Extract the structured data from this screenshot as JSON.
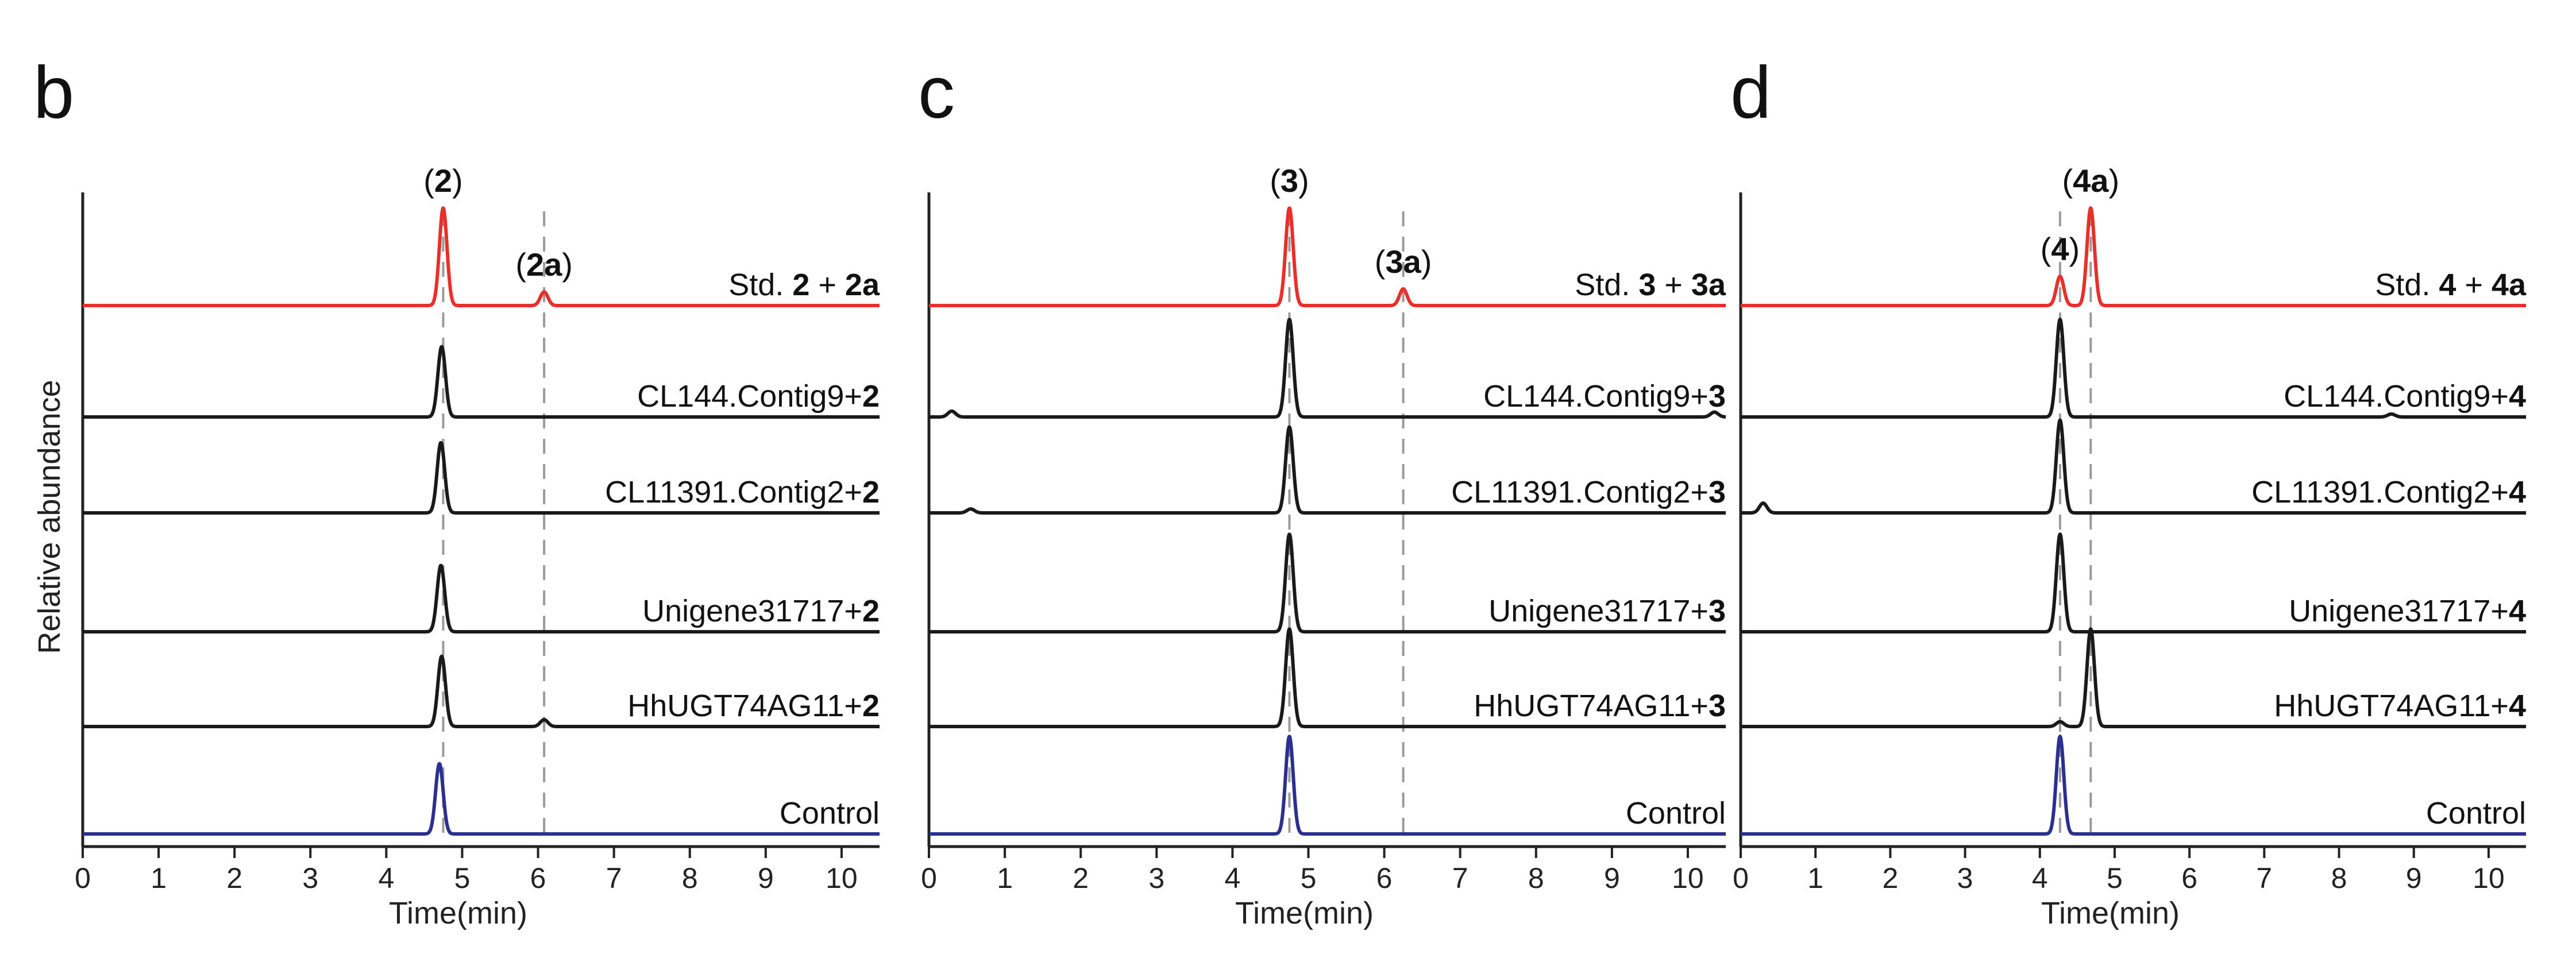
{
  "figure": {
    "y_axis_label": "Relative abundance",
    "colors": {
      "standard": "#e8302a",
      "sample": "#1a1a1a",
      "control": "#2b2f8f",
      "guide": "#9a9a9a",
      "axis": "#222222"
    }
  },
  "chart_data": [
    {
      "type": "line",
      "panel_letter": "b",
      "title": "",
      "xlabel": "Time(min)",
      "ylabel": "Relative abundance",
      "xlim": [
        0,
        10.5
      ],
      "xticks": [
        "0",
        "1",
        "2",
        "3",
        "4",
        "5",
        "6",
        "7",
        "8",
        "9",
        "10"
      ],
      "peak_labels": [
        {
          "pre": "(",
          "bold": "2",
          "post": ")",
          "time": 4.75
        },
        {
          "pre": "(",
          "bold": "2a",
          "post": ")",
          "time": 6.08
        }
      ],
      "guides": [
        4.75,
        6.08
      ],
      "series": [
        {
          "name_pre": "Std. ",
          "name_bold1": "2",
          "name_mid": " + ",
          "name_bold2": "2a",
          "color": "standard",
          "peaks": [
            {
              "time": 4.75,
              "height": 1.0
            },
            {
              "time": 6.08,
              "height": 0.14
            }
          ]
        },
        {
          "name_pre": "CL144.Contig9+",
          "name_bold1": "2",
          "name_mid": "",
          "name_bold2": "",
          "color": "sample",
          "peaks": [
            {
              "time": 4.73,
              "height": 0.72
            }
          ]
        },
        {
          "name_pre": "CL11391.Contig2+",
          "name_bold1": "2",
          "name_mid": "",
          "name_bold2": "",
          "color": "sample",
          "peaks": [
            {
              "time": 4.72,
              "height": 0.72
            }
          ]
        },
        {
          "name_pre": "Unigene31717+",
          "name_bold1": "2",
          "name_mid": "",
          "name_bold2": "",
          "color": "sample",
          "peaks": [
            {
              "time": 4.72,
              "height": 0.68
            }
          ]
        },
        {
          "name_pre": "HhUGT74AG11+",
          "name_bold1": "2",
          "name_mid": "",
          "name_bold2": "",
          "color": "sample",
          "peaks": [
            {
              "time": 4.73,
              "height": 0.72
            },
            {
              "time": 6.08,
              "height": 0.07
            }
          ]
        },
        {
          "name_pre": "Control",
          "name_bold1": "",
          "name_mid": "",
          "name_bold2": "",
          "color": "control",
          "peaks": [
            {
              "time": 4.7,
              "height": 0.72
            }
          ]
        }
      ]
    },
    {
      "type": "line",
      "panel_letter": "c",
      "title": "",
      "xlabel": "Time(min)",
      "ylabel": "",
      "xlim": [
        0,
        10.5
      ],
      "xticks": [
        "0",
        "1",
        "2",
        "3",
        "4",
        "5",
        "6",
        "7",
        "8",
        "9",
        "10"
      ],
      "peak_labels": [
        {
          "pre": "(",
          "bold": "3",
          "post": ")",
          "time": 4.75
        },
        {
          "pre": "(",
          "bold": "3a",
          "post": ")",
          "time": 6.25
        }
      ],
      "guides": [
        4.75,
        6.25
      ],
      "series": [
        {
          "name_pre": "Std. ",
          "name_bold1": "3",
          "name_mid": " + ",
          "name_bold2": "3a",
          "color": "standard",
          "peaks": [
            {
              "time": 4.75,
              "height": 1.0
            },
            {
              "time": 6.25,
              "height": 0.17
            }
          ]
        },
        {
          "name_pre": "CL144.Contig9+",
          "name_bold1": "3",
          "name_mid": "",
          "name_bold2": "",
          "color": "sample",
          "peaks": [
            {
              "time": 4.75,
              "height": 1.0
            },
            {
              "time": 0.3,
              "height": 0.06
            },
            {
              "time": 10.35,
              "height": 0.05
            }
          ]
        },
        {
          "name_pre": "CL11391.Contig2+",
          "name_bold1": "3",
          "name_mid": "",
          "name_bold2": "",
          "color": "sample",
          "peaks": [
            {
              "time": 4.75,
              "height": 0.88
            },
            {
              "time": 0.55,
              "height": 0.04
            }
          ]
        },
        {
          "name_pre": "Unigene31717+",
          "name_bold1": "3",
          "name_mid": "",
          "name_bold2": "",
          "color": "sample",
          "peaks": [
            {
              "time": 4.75,
              "height": 1.0
            }
          ]
        },
        {
          "name_pre": "HhUGT74AG11+",
          "name_bold1": "3",
          "name_mid": "",
          "name_bold2": "",
          "color": "sample",
          "peaks": [
            {
              "time": 4.75,
              "height": 1.0
            }
          ]
        },
        {
          "name_pre": "Control",
          "name_bold1": "",
          "name_mid": "",
          "name_bold2": "",
          "color": "control",
          "peaks": [
            {
              "time": 4.75,
              "height": 1.0
            }
          ]
        }
      ]
    },
    {
      "type": "line",
      "panel_letter": "d",
      "title": "",
      "xlabel": "Time(min)",
      "ylabel": "",
      "xlim": [
        0,
        10.5
      ],
      "xticks": [
        "0",
        "1",
        "2",
        "3",
        "4",
        "5",
        "6",
        "7",
        "8",
        "9",
        "10"
      ],
      "peak_labels": [
        {
          "pre": "(",
          "bold": "4",
          "post": ")",
          "time": 4.27
        },
        {
          "pre": "(",
          "bold": "4a",
          "post": ")",
          "time": 4.68
        }
      ],
      "guides": [
        4.27,
        4.68
      ],
      "series": [
        {
          "name_pre": "Std. ",
          "name_bold1": "4",
          "name_mid": " + ",
          "name_bold2": "4a",
          "color": "standard",
          "peaks": [
            {
              "time": 4.27,
              "height": 0.3
            },
            {
              "time": 4.68,
              "height": 1.0
            }
          ]
        },
        {
          "name_pre": "CL144.Contig9+",
          "name_bold1": "4",
          "name_mid": "",
          "name_bold2": "",
          "color": "sample",
          "peaks": [
            {
              "time": 4.27,
              "height": 1.0
            },
            {
              "time": 8.7,
              "height": 0.03
            }
          ]
        },
        {
          "name_pre": "CL11391.Contig2+",
          "name_bold1": "4",
          "name_mid": "",
          "name_bold2": "",
          "color": "sample",
          "peaks": [
            {
              "time": 4.27,
              "height": 0.95
            },
            {
              "time": 0.3,
              "height": 0.1
            }
          ]
        },
        {
          "name_pre": "Unigene31717+",
          "name_bold1": "4",
          "name_mid": "",
          "name_bold2": "",
          "color": "sample",
          "peaks": [
            {
              "time": 4.27,
              "height": 1.0
            }
          ]
        },
        {
          "name_pre": "HhUGT74AG11+",
          "name_bold1": "4",
          "name_mid": "",
          "name_bold2": "",
          "color": "sample",
          "peaks": [
            {
              "time": 4.68,
              "height": 1.0
            },
            {
              "time": 4.27,
              "height": 0.05
            }
          ]
        },
        {
          "name_pre": "Control",
          "name_bold1": "",
          "name_mid": "",
          "name_bold2": "",
          "color": "control",
          "peaks": [
            {
              "time": 4.27,
              "height": 1.0
            }
          ]
        }
      ]
    }
  ]
}
